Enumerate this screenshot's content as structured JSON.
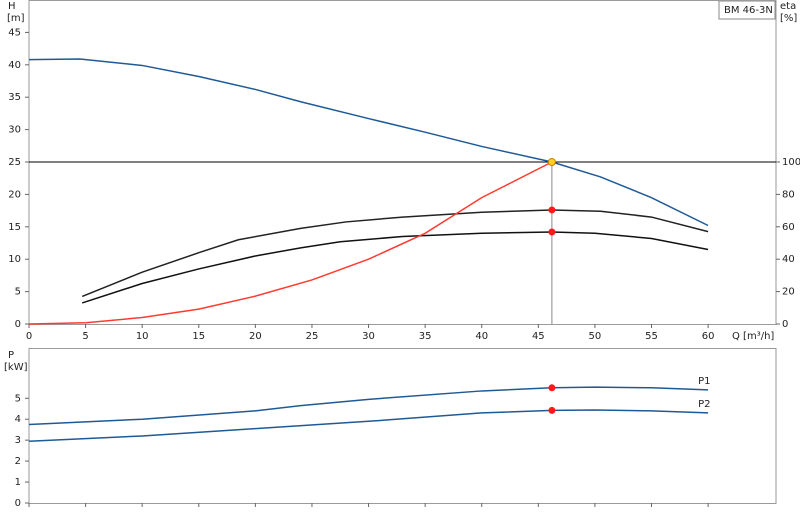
{
  "chart_data": [
    {
      "type": "line",
      "model": "BM 46-3N",
      "y_label": "H",
      "y_unit": "[m]",
      "y2_label": "eta",
      "y2_unit": "[%]",
      "x_label": "Q [m³/h]",
      "xlim": [
        0,
        66
      ],
      "xticks": [
        0,
        5,
        10,
        15,
        20,
        25,
        30,
        35,
        40,
        45,
        50,
        55,
        60
      ],
      "ylim": [
        0,
        50
      ],
      "yticks": [
        0,
        5,
        10,
        15,
        20,
        25,
        30,
        35,
        40,
        45
      ],
      "y2lim": [
        0,
        200
      ],
      "y2ticks": [
        0,
        20,
        40,
        60,
        80,
        100
      ],
      "reference_lines": {
        "y": 25,
        "x": 46.2
      },
      "series": [
        {
          "style": "line",
          "color": "#1f5a96",
          "x": [
            0,
            4.5,
            10,
            15,
            20,
            24,
            30,
            35,
            40,
            46.2,
            50.5,
            55,
            60
          ],
          "values": [
            40.8,
            40.9,
            39.9,
            38.2,
            36.2,
            34.3,
            31.7,
            29.6,
            27.4,
            25,
            22.7,
            19.5,
            15.2
          ]
        },
        {
          "style": "line",
          "color": "#222222",
          "axis": "y2",
          "x": [
            4.7,
            10,
            15,
            18.5,
            24,
            28,
            33,
            40,
            46.2,
            50.5,
            55,
            60
          ],
          "values": [
            17,
            32,
            44,
            52,
            59,
            63,
            66,
            69,
            70.4,
            69.6,
            66,
            57
          ]
        },
        {
          "style": "line",
          "color": "#111111",
          "axis": "y2",
          "x": [
            4.7,
            10,
            15,
            20,
            24,
            27.5,
            33,
            40,
            46.2,
            50,
            55,
            60
          ],
          "values": [
            13,
            25,
            34,
            42,
            47,
            50.8,
            54,
            56,
            56.8,
            56,
            52.8,
            46
          ]
        },
        {
          "style": "line",
          "color": "#ff3b30",
          "x": [
            0,
            5,
            10,
            15,
            20,
            25,
            30,
            35,
            40,
            46.2
          ],
          "values": [
            0,
            0.2,
            1,
            2.3,
            4.3,
            6.8,
            10,
            14,
            19.5,
            25
          ]
        },
        {
          "style": "point",
          "color": "#ffd21f",
          "x": [
            46.2
          ],
          "values": [
            25
          ]
        },
        {
          "style": "point",
          "color": "#ff1a1a",
          "axis": "y2",
          "x": [
            46.2,
            46.2
          ],
          "values": [
            70.4,
            56.8
          ]
        }
      ]
    },
    {
      "type": "line",
      "y_label": "P",
      "y_unit": "[kW]",
      "xlim": [
        0,
        66
      ],
      "ylim": [
        0,
        7.4
      ],
      "yticks": [
        0,
        1,
        2,
        3,
        4,
        5
      ],
      "series": [
        {
          "name": "P1",
          "style": "line",
          "color": "#1f5a96",
          "x": [
            0,
            10,
            20,
            24,
            30,
            40,
            46.2,
            50,
            55,
            60
          ],
          "values": [
            3.75,
            4.0,
            4.4,
            4.65,
            4.95,
            5.35,
            5.5,
            5.53,
            5.5,
            5.4
          ]
        },
        {
          "name": "P2",
          "style": "line",
          "color": "#1f5a96",
          "x": [
            0,
            10,
            20,
            30,
            40,
            46.2,
            50,
            55,
            60
          ],
          "values": [
            2.95,
            3.2,
            3.55,
            3.9,
            4.3,
            4.42,
            4.44,
            4.4,
            4.3
          ]
        },
        {
          "style": "point",
          "color": "#ff1a1a",
          "x": [
            46.2,
            46.2
          ],
          "values": [
            5.5,
            4.42
          ]
        }
      ]
    }
  ]
}
